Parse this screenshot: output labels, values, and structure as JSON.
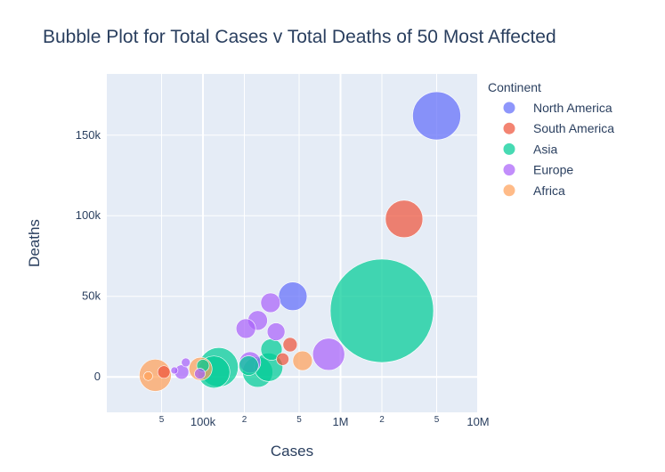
{
  "chart_data": {
    "type": "scatter",
    "subtype": "bubble",
    "title": "Bubble Plot for Total Cases v Total Deaths of 50 Most Affected",
    "xlabel": "Cases",
    "ylabel": "Deaths",
    "x_scale": "log",
    "xlim": [
      20000,
      10000000
    ],
    "ylim": [
      -22000,
      188000
    ],
    "x_ticks": [
      {
        "value": 50000,
        "label": "5",
        "minor": true
      },
      {
        "value": 100000,
        "label": "100k",
        "minor": false
      },
      {
        "value": 200000,
        "label": "2",
        "minor": true
      },
      {
        "value": 500000,
        "label": "5",
        "minor": true
      },
      {
        "value": 1000000,
        "label": "1M",
        "minor": false
      },
      {
        "value": 2000000,
        "label": "2",
        "minor": true
      },
      {
        "value": 5000000,
        "label": "5",
        "minor": true
      },
      {
        "value": 10000000,
        "label": "10M",
        "minor": false
      }
    ],
    "y_ticks": [
      {
        "value": 0,
        "label": "0"
      },
      {
        "value": 50000,
        "label": "50k"
      },
      {
        "value": 100000,
        "label": "100k"
      },
      {
        "value": 150000,
        "label": "150k"
      }
    ],
    "grid": true,
    "legend_title": "Continent",
    "legend_position": "right",
    "series": [
      {
        "name": "North America",
        "color": "#636efa",
        "points": [
          {
            "x": 5000000,
            "y": 162000,
            "r": 27
          },
          {
            "x": 450000,
            "y": 50000,
            "r": 16
          }
        ]
      },
      {
        "name": "South America",
        "color": "#ef553b",
        "points": [
          {
            "x": 2900000,
            "y": 98000,
            "r": 21
          },
          {
            "x": 430000,
            "y": 20000,
            "r": 8
          },
          {
            "x": 380000,
            "y": 11000,
            "r": 7
          },
          {
            "x": 52000,
            "y": 3000,
            "r": 7
          }
        ]
      },
      {
        "name": "Asia",
        "color": "#00cc96",
        "points": [
          {
            "x": 2000000,
            "y": 41000,
            "r": 58
          },
          {
            "x": 315000,
            "y": 17000,
            "r": 12
          },
          {
            "x": 300000,
            "y": 6000,
            "r": 16
          },
          {
            "x": 250000,
            "y": 3000,
            "r": 17
          },
          {
            "x": 215000,
            "y": 7000,
            "r": 11
          },
          {
            "x": 130000,
            "y": 6000,
            "r": 22
          },
          {
            "x": 120000,
            "y": 3000,
            "r": 18
          },
          {
            "x": 100000,
            "y": 7000,
            "r": 7
          }
        ]
      },
      {
        "name": "Europe",
        "color": "#ab63fa",
        "points": [
          {
            "x": 820000,
            "y": 14000,
            "r": 18
          },
          {
            "x": 310000,
            "y": 46000,
            "r": 11
          },
          {
            "x": 250000,
            "y": 35000,
            "r": 11
          },
          {
            "x": 340000,
            "y": 28000,
            "r": 10
          },
          {
            "x": 205000,
            "y": 30000,
            "r": 11
          },
          {
            "x": 220000,
            "y": 9000,
            "r": 12
          },
          {
            "x": 70000,
            "y": 3000,
            "r": 8
          },
          {
            "x": 75000,
            "y": 9000,
            "r": 5
          },
          {
            "x": 95000,
            "y": 2000,
            "r": 6
          },
          {
            "x": 62000,
            "y": 4000,
            "r": 4
          }
        ]
      },
      {
        "name": "Africa",
        "color": "#ffa15a",
        "points": [
          {
            "x": 530000,
            "y": 10000,
            "r": 11
          },
          {
            "x": 96000,
            "y": 5000,
            "r": 13
          },
          {
            "x": 45000,
            "y": 1000,
            "r": 18
          },
          {
            "x": 40000,
            "y": 500,
            "r": 5
          }
        ]
      }
    ]
  }
}
